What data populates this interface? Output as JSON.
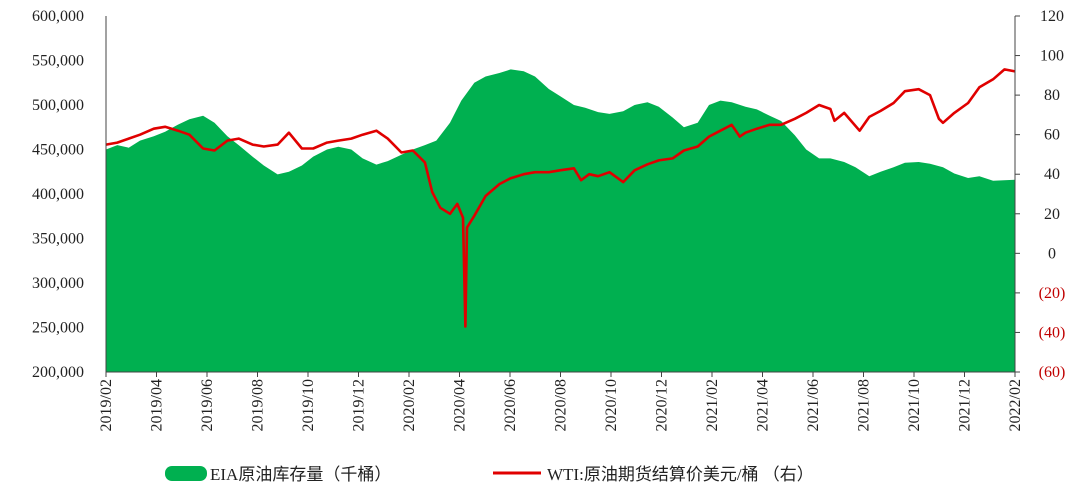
{
  "chart_data": {
    "type": "area+line",
    "legend_placement": "bottom",
    "grid": false,
    "x": {
      "range": [
        "2019-02-01",
        "2022-02-28"
      ],
      "tick_labels": [
        "2019/02",
        "2019/04",
        "2019/06",
        "2019/08",
        "2019/10",
        "2019/12",
        "2020/02",
        "2020/04",
        "2020/06",
        "2020/08",
        "2020/10",
        "2020/12",
        "2021/02",
        "2021/04",
        "2021/06",
        "2021/08",
        "2021/10",
        "2021/12",
        "2022/02"
      ]
    },
    "y_left": {
      "range": [
        200000,
        600000
      ],
      "ticks": [
        200000,
        250000,
        300000,
        350000,
        400000,
        450000,
        500000,
        550000,
        600000
      ],
      "tick_labels": [
        "200,000",
        "250,000",
        "300,000",
        "350,000",
        "400,000",
        "450,000",
        "500,000",
        "550,000",
        "600,000"
      ]
    },
    "y_right": {
      "range": [
        -60,
        120
      ],
      "ticks": [
        -60,
        -40,
        -20,
        0,
        20,
        40,
        60,
        80,
        100,
        120
      ],
      "tick_labels": [
        "(60)",
        "(40)",
        "(20)",
        "0",
        "20",
        "40",
        "60",
        "80",
        "100",
        "120"
      ]
    },
    "series": [
      {
        "name": "EIA原油库存量（千桶）",
        "type": "area",
        "axis": "left",
        "color": "#00b050",
        "points": [
          [
            "2019-02-01",
            450000
          ],
          [
            "2019-02-15",
            455000
          ],
          [
            "2019-03-01",
            452000
          ],
          [
            "2019-03-15",
            460000
          ],
          [
            "2019-04-01",
            465000
          ],
          [
            "2019-04-15",
            470000
          ],
          [
            "2019-05-01",
            478000
          ],
          [
            "2019-05-15",
            484000
          ],
          [
            "2019-06-01",
            488000
          ],
          [
            "2019-06-15",
            480000
          ],
          [
            "2019-07-01",
            465000
          ],
          [
            "2019-07-15",
            455000
          ],
          [
            "2019-08-01",
            442000
          ],
          [
            "2019-08-15",
            432000
          ],
          [
            "2019-09-01",
            422000
          ],
          [
            "2019-09-15",
            425000
          ],
          [
            "2019-10-01",
            432000
          ],
          [
            "2019-10-15",
            442000
          ],
          [
            "2019-11-01",
            450000
          ],
          [
            "2019-11-15",
            453000
          ],
          [
            "2019-12-01",
            450000
          ],
          [
            "2019-12-15",
            440000
          ],
          [
            "2020-01-01",
            433000
          ],
          [
            "2020-01-15",
            437000
          ],
          [
            "2020-02-01",
            444000
          ],
          [
            "2020-02-15",
            450000
          ],
          [
            "2020-03-01",
            455000
          ],
          [
            "2020-03-15",
            460000
          ],
          [
            "2020-04-01",
            480000
          ],
          [
            "2020-04-15",
            505000
          ],
          [
            "2020-05-01",
            525000
          ],
          [
            "2020-05-15",
            532000
          ],
          [
            "2020-06-01",
            536000
          ],
          [
            "2020-06-15",
            540000
          ],
          [
            "2020-07-01",
            538000
          ],
          [
            "2020-07-15",
            532000
          ],
          [
            "2020-08-01",
            518000
          ],
          [
            "2020-08-15",
            510000
          ],
          [
            "2020-09-01",
            500000
          ],
          [
            "2020-09-15",
            497000
          ],
          [
            "2020-10-01",
            492000
          ],
          [
            "2020-10-15",
            490000
          ],
          [
            "2020-11-01",
            493000
          ],
          [
            "2020-11-15",
            500000
          ],
          [
            "2020-12-01",
            503000
          ],
          [
            "2020-12-15",
            498000
          ],
          [
            "2021-01-01",
            486000
          ],
          [
            "2021-01-15",
            475000
          ],
          [
            "2021-02-01",
            480000
          ],
          [
            "2021-02-15",
            500000
          ],
          [
            "2021-03-01",
            505000
          ],
          [
            "2021-03-15",
            503000
          ],
          [
            "2021-04-01",
            498000
          ],
          [
            "2021-04-15",
            495000
          ],
          [
            "2021-05-01",
            488000
          ],
          [
            "2021-05-15",
            482000
          ],
          [
            "2021-06-01",
            466000
          ],
          [
            "2021-06-15",
            450000
          ],
          [
            "2021-07-01",
            440000
          ],
          [
            "2021-07-15",
            440000
          ],
          [
            "2021-08-01",
            436000
          ],
          [
            "2021-08-15",
            430000
          ],
          [
            "2021-09-01",
            420000
          ],
          [
            "2021-09-15",
            425000
          ],
          [
            "2021-10-01",
            430000
          ],
          [
            "2021-10-15",
            435000
          ],
          [
            "2021-11-01",
            436000
          ],
          [
            "2021-11-15",
            434000
          ],
          [
            "2021-12-01",
            430000
          ],
          [
            "2021-12-15",
            423000
          ],
          [
            "2022-01-01",
            418000
          ],
          [
            "2022-01-15",
            420000
          ],
          [
            "2022-02-01",
            415000
          ],
          [
            "2022-02-28",
            416000
          ]
        ]
      },
      {
        "name": "WTI:原油期货结算价美元/桶 （右）",
        "type": "line",
        "axis": "right",
        "color": "#e00000",
        "points": [
          [
            "2019-02-01",
            55
          ],
          [
            "2019-02-15",
            56
          ],
          [
            "2019-03-01",
            58
          ],
          [
            "2019-03-15",
            60
          ],
          [
            "2019-04-01",
            63
          ],
          [
            "2019-04-15",
            64
          ],
          [
            "2019-05-01",
            62
          ],
          [
            "2019-05-15",
            60
          ],
          [
            "2019-06-01",
            53
          ],
          [
            "2019-06-15",
            52
          ],
          [
            "2019-07-01",
            57
          ],
          [
            "2019-07-15",
            58
          ],
          [
            "2019-08-01",
            55
          ],
          [
            "2019-08-15",
            54
          ],
          [
            "2019-09-01",
            55
          ],
          [
            "2019-09-15",
            61
          ],
          [
            "2019-10-01",
            53
          ],
          [
            "2019-10-15",
            53
          ],
          [
            "2019-11-01",
            56
          ],
          [
            "2019-11-15",
            57
          ],
          [
            "2019-12-01",
            58
          ],
          [
            "2019-12-15",
            60
          ],
          [
            "2020-01-01",
            62
          ],
          [
            "2020-01-15",
            58
          ],
          [
            "2020-02-01",
            51
          ],
          [
            "2020-02-15",
            52
          ],
          [
            "2020-03-01",
            46
          ],
          [
            "2020-03-10",
            31
          ],
          [
            "2020-03-20",
            23
          ],
          [
            "2020-04-01",
            20
          ],
          [
            "2020-04-10",
            25
          ],
          [
            "2020-04-17",
            18
          ],
          [
            "2020-04-20",
            -37
          ],
          [
            "2020-04-22",
            13
          ],
          [
            "2020-05-01",
            19
          ],
          [
            "2020-05-15",
            29
          ],
          [
            "2020-06-01",
            35
          ],
          [
            "2020-06-15",
            38
          ],
          [
            "2020-07-01",
            40
          ],
          [
            "2020-07-15",
            41
          ],
          [
            "2020-08-01",
            41
          ],
          [
            "2020-08-15",
            42
          ],
          [
            "2020-09-01",
            43
          ],
          [
            "2020-09-10",
            37
          ],
          [
            "2020-09-20",
            40
          ],
          [
            "2020-10-01",
            39
          ],
          [
            "2020-10-15",
            41
          ],
          [
            "2020-11-01",
            36
          ],
          [
            "2020-11-15",
            42
          ],
          [
            "2020-12-01",
            45
          ],
          [
            "2020-12-15",
            47
          ],
          [
            "2021-01-01",
            48
          ],
          [
            "2021-01-15",
            52
          ],
          [
            "2021-02-01",
            54
          ],
          [
            "2021-02-15",
            59
          ],
          [
            "2021-03-01",
            62
          ],
          [
            "2021-03-15",
            65
          ],
          [
            "2021-03-25",
            59
          ],
          [
            "2021-04-01",
            61
          ],
          [
            "2021-04-15",
            63
          ],
          [
            "2021-05-01",
            65
          ],
          [
            "2021-05-15",
            65
          ],
          [
            "2021-06-01",
            68
          ],
          [
            "2021-06-15",
            71
          ],
          [
            "2021-07-01",
            75
          ],
          [
            "2021-07-15",
            73
          ],
          [
            "2021-07-20",
            67
          ],
          [
            "2021-08-01",
            71
          ],
          [
            "2021-08-20",
            62
          ],
          [
            "2021-09-01",
            69
          ],
          [
            "2021-09-15",
            72
          ],
          [
            "2021-10-01",
            76
          ],
          [
            "2021-10-15",
            82
          ],
          [
            "2021-11-01",
            83
          ],
          [
            "2021-11-15",
            80
          ],
          [
            "2021-11-26",
            68
          ],
          [
            "2021-12-01",
            66
          ],
          [
            "2021-12-15",
            71
          ],
          [
            "2022-01-01",
            76
          ],
          [
            "2022-01-15",
            84
          ],
          [
            "2022-02-01",
            88
          ],
          [
            "2022-02-15",
            93
          ],
          [
            "2022-02-28",
            92
          ]
        ]
      }
    ]
  }
}
